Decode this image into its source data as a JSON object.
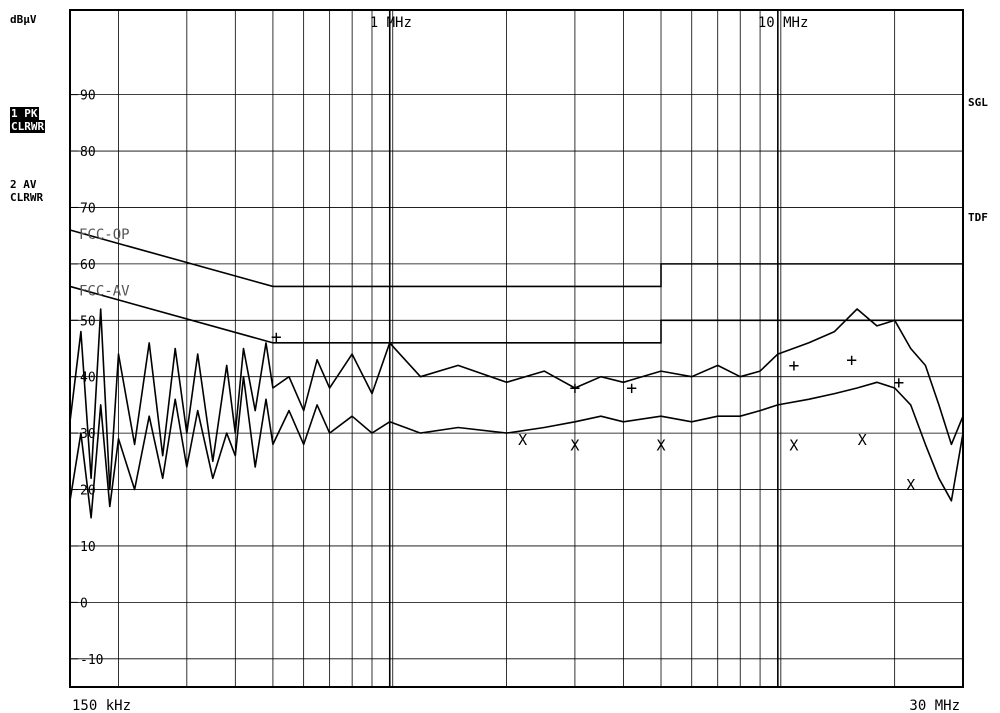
{
  "chart_data": {
    "type": "line",
    "y_unit": "dBµV",
    "ylim": [
      -15,
      105
    ],
    "xlim_hz": [
      150000,
      30000000
    ],
    "x_scale": "log",
    "grid": true,
    "y_ticks": [
      "90",
      "80",
      "70",
      "60",
      "50",
      "40",
      "30",
      "20",
      "10",
      "0",
      "-10"
    ],
    "x_ticks": [
      {
        "label": "1 MHz",
        "hz": 1000000
      },
      {
        "label": "10 MHz",
        "hz": 10000000
      }
    ],
    "x_min_label": "150 kHz",
    "x_max_label": "30 MHz",
    "limits": [
      {
        "name": "FCC-QP",
        "points_mhz_db": [
          [
            0.15,
            66
          ],
          [
            0.5,
            56
          ],
          [
            5,
            56
          ],
          [
            5,
            60
          ],
          [
            30,
            60
          ]
        ]
      },
      {
        "name": "FCC-AV",
        "points_mhz_db": [
          [
            0.15,
            56
          ],
          [
            0.5,
            46
          ],
          [
            5,
            46
          ],
          [
            5,
            50
          ],
          [
            30,
            50
          ]
        ]
      }
    ],
    "series": [
      {
        "name": "1 PK",
        "mode": "CLRWR",
        "points_mhz_db": [
          [
            0.15,
            32
          ],
          [
            0.16,
            48
          ],
          [
            0.17,
            22
          ],
          [
            0.18,
            52
          ],
          [
            0.19,
            20
          ],
          [
            0.2,
            44
          ],
          [
            0.22,
            28
          ],
          [
            0.24,
            46
          ],
          [
            0.26,
            26
          ],
          [
            0.28,
            45
          ],
          [
            0.3,
            30
          ],
          [
            0.32,
            44
          ],
          [
            0.35,
            25
          ],
          [
            0.38,
            42
          ],
          [
            0.4,
            30
          ],
          [
            0.42,
            45
          ],
          [
            0.45,
            34
          ],
          [
            0.48,
            46
          ],
          [
            0.5,
            38
          ],
          [
            0.55,
            40
          ],
          [
            0.6,
            34
          ],
          [
            0.65,
            43
          ],
          [
            0.7,
            38
          ],
          [
            0.8,
            44
          ],
          [
            0.9,
            37
          ],
          [
            1.0,
            46
          ],
          [
            1.2,
            40
          ],
          [
            1.5,
            42
          ],
          [
            2.0,
            39
          ],
          [
            2.5,
            41
          ],
          [
            3.0,
            38
          ],
          [
            3.5,
            40
          ],
          [
            4.0,
            39
          ],
          [
            5.0,
            41
          ],
          [
            6.0,
            40
          ],
          [
            7.0,
            42
          ],
          [
            8.0,
            40
          ],
          [
            9.0,
            41
          ],
          [
            10.0,
            44
          ],
          [
            12.0,
            46
          ],
          [
            14.0,
            48
          ],
          [
            16.0,
            52
          ],
          [
            18.0,
            49
          ],
          [
            20.0,
            50
          ],
          [
            22.0,
            45
          ],
          [
            24.0,
            42
          ],
          [
            26.0,
            35
          ],
          [
            28.0,
            28
          ],
          [
            30.0,
            33
          ]
        ]
      },
      {
        "name": "2 AV",
        "mode": "CLRWR",
        "points_mhz_db": [
          [
            0.15,
            18
          ],
          [
            0.16,
            30
          ],
          [
            0.17,
            15
          ],
          [
            0.18,
            35
          ],
          [
            0.19,
            17
          ],
          [
            0.2,
            29
          ],
          [
            0.22,
            20
          ],
          [
            0.24,
            33
          ],
          [
            0.26,
            22
          ],
          [
            0.28,
            36
          ],
          [
            0.3,
            24
          ],
          [
            0.32,
            34
          ],
          [
            0.35,
            22
          ],
          [
            0.38,
            30
          ],
          [
            0.4,
            26
          ],
          [
            0.42,
            40
          ],
          [
            0.45,
            24
          ],
          [
            0.48,
            36
          ],
          [
            0.5,
            28
          ],
          [
            0.55,
            34
          ],
          [
            0.6,
            28
          ],
          [
            0.65,
            35
          ],
          [
            0.7,
            30
          ],
          [
            0.8,
            33
          ],
          [
            0.9,
            30
          ],
          [
            1.0,
            32
          ],
          [
            1.2,
            30
          ],
          [
            1.5,
            31
          ],
          [
            2.0,
            30
          ],
          [
            2.5,
            31
          ],
          [
            3.0,
            32
          ],
          [
            3.5,
            33
          ],
          [
            4.0,
            32
          ],
          [
            5.0,
            33
          ],
          [
            6.0,
            32
          ],
          [
            7.0,
            33
          ],
          [
            8.0,
            33
          ],
          [
            9.0,
            34
          ],
          [
            10.0,
            35
          ],
          [
            12.0,
            36
          ],
          [
            14.0,
            37
          ],
          [
            16.0,
            38
          ],
          [
            18.0,
            39
          ],
          [
            20.0,
            38
          ],
          [
            22.0,
            35
          ],
          [
            24.0,
            28
          ],
          [
            26.0,
            22
          ],
          [
            28.0,
            18
          ],
          [
            30.0,
            30
          ]
        ]
      }
    ],
    "markers_plus_mhz_db": [
      [
        0.51,
        47
      ],
      [
        3.0,
        38
      ],
      [
        4.2,
        38
      ],
      [
        11.0,
        42
      ],
      [
        15.5,
        43
      ],
      [
        20.5,
        39
      ]
    ],
    "markers_x_mhz_db": [
      [
        2.2,
        29
      ],
      [
        3.0,
        28
      ],
      [
        5.0,
        28
      ],
      [
        11.0,
        28
      ],
      [
        16.5,
        29
      ],
      [
        22.0,
        21
      ]
    ]
  },
  "labels": {
    "unit": "dBµV",
    "trace1_name": "1 PK",
    "trace1_mode": "CLRWR",
    "trace2_name": "2 AV",
    "trace2_mode": "CLRWR",
    "right_top": "SGL",
    "right_mid": "TDF",
    "limit_qp": "FCC-QP",
    "limit_av": "FCC-AV",
    "x_min": "150 kHz",
    "x_max": "30 MHz"
  }
}
